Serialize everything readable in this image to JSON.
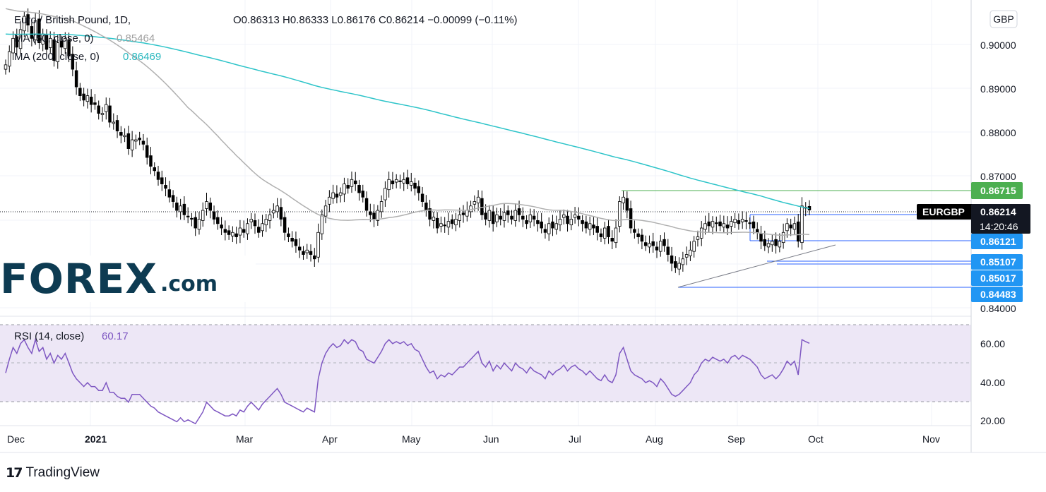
{
  "header": {
    "symbol": "Euro / British Pound, 1D,",
    "ohlc": "O0.86313  H0.86333  L0.86176  C0.86214  −0.00099 (−0.11%)",
    "ma50_label": "MA (50, close, 0)",
    "ma50_value": "0.85464",
    "ma200_label": "MA (200, close, 0)",
    "ma200_value": "0.86469"
  },
  "currency_badge": "GBP",
  "brand": {
    "logo_main": "FOREX",
    "logo_suffix": ".com",
    "platform": "TradingView",
    "platform_mark": "17"
  },
  "colors": {
    "bull": "#ffffff",
    "bear": "#000000",
    "ma200": "#2ec4c9",
    "ma50": "#b0b0b0",
    "resistance": "#4caf50",
    "support": "#2962ff",
    "rsi": "#7e57c2",
    "rsi_band": "#ede7f6",
    "price_tag": "#131722",
    "support_tag": "#2196f3",
    "resistance_tag": "#4caf50"
  },
  "price_tags": {
    "resistance": {
      "value": "0.86715"
    },
    "current": {
      "symbol": "EURGBP",
      "value": "0.86214",
      "countdown": "14:20:46"
    },
    "supports": [
      "0.86121",
      "0.85107",
      "0.85017",
      "0.84483"
    ]
  },
  "chart_data": [
    {
      "type": "candlestick",
      "title": "Euro / British Pound, 1D",
      "currency": "GBP",
      "y_ticks": [
        "0.90000",
        "0.89000",
        "0.88000",
        "0.87000",
        "0.84000"
      ],
      "ylim": [
        0.838,
        0.9097
      ],
      "x_ticks": [
        "Dec",
        "2021",
        "Mar",
        "Apr",
        "May",
        "Jun",
        "Jul",
        "Aug",
        "Sep",
        "Oct",
        "Nov"
      ],
      "candle_closes": [
        0.895,
        0.898,
        0.901,
        0.899,
        0.903,
        0.906,
        0.904,
        0.901,
        0.905,
        0.9,
        0.902,
        0.8985,
        0.901,
        0.896,
        0.9,
        0.899,
        0.901,
        0.897,
        0.894,
        0.89,
        0.888,
        0.887,
        0.888,
        0.886,
        0.886,
        0.884,
        0.884,
        0.886,
        0.882,
        0.882,
        0.88,
        0.879,
        0.879,
        0.876,
        0.878,
        0.878,
        0.878,
        0.877,
        0.874,
        0.872,
        0.871,
        0.869,
        0.868,
        0.867,
        0.865,
        0.864,
        0.862,
        0.863,
        0.861,
        0.8605,
        0.86,
        0.858,
        0.86,
        0.862,
        0.864,
        0.862,
        0.86,
        0.859,
        0.858,
        0.857,
        0.8565,
        0.857,
        0.856,
        0.858,
        0.857,
        0.859,
        0.86,
        0.8585,
        0.857,
        0.859,
        0.86,
        0.861,
        0.862,
        0.863,
        0.86,
        0.857,
        0.856,
        0.855,
        0.854,
        0.853,
        0.852,
        0.853,
        0.852,
        0.851,
        0.857,
        0.861,
        0.863,
        0.865,
        0.866,
        0.865,
        0.866,
        0.868,
        0.867,
        0.869,
        0.868,
        0.866,
        0.865,
        0.862,
        0.861,
        0.86,
        0.862,
        0.864,
        0.867,
        0.869,
        0.868,
        0.869,
        0.8685,
        0.869,
        0.868,
        0.8685,
        0.867,
        0.866,
        0.864,
        0.862,
        0.86,
        0.8605,
        0.858,
        0.859,
        0.8585,
        0.8595,
        0.859,
        0.86,
        0.861,
        0.861,
        0.862,
        0.863,
        0.864,
        0.865,
        0.861,
        0.86,
        0.862,
        0.859,
        0.861,
        0.86,
        0.8615,
        0.861,
        0.86,
        0.862,
        0.861,
        0.86,
        0.859,
        0.861,
        0.86,
        0.859,
        0.858,
        0.857,
        0.859,
        0.858,
        0.859,
        0.86,
        0.861,
        0.859,
        0.86,
        0.861,
        0.86,
        0.859,
        0.858,
        0.859,
        0.858,
        0.857,
        0.856,
        0.858,
        0.856,
        0.855,
        0.858,
        0.864,
        0.865,
        0.862,
        0.858,
        0.857,
        0.856,
        0.855,
        0.854,
        0.8545,
        0.854,
        0.853,
        0.855,
        0.854,
        0.852,
        0.85,
        0.849,
        0.85,
        0.851,
        0.852,
        0.853,
        0.855,
        0.856,
        0.858,
        0.859,
        0.8585,
        0.8595,
        0.859,
        0.8585,
        0.859,
        0.858,
        0.8595,
        0.86,
        0.859,
        0.86,
        0.8595,
        0.859,
        0.858,
        0.857,
        0.855,
        0.854,
        0.8545,
        0.855,
        0.854,
        0.855,
        0.857,
        0.859,
        0.858,
        0.859,
        0.855,
        0.863,
        0.8625,
        0.8621
      ],
      "series": [
        {
          "name": "MA (50, close, 0)",
          "last": 0.85464
        },
        {
          "name": "MA (200, close, 0)",
          "last": 0.86469
        }
      ],
      "levels": [
        0.86715,
        0.86121,
        0.85107,
        0.85017,
        0.84483
      ]
    },
    {
      "type": "line",
      "title": "RSI (14, close)",
      "value_label": "60.17",
      "y_ticks": [
        "60.00",
        "40.00",
        "20.00"
      ],
      "ylim": [
        18,
        74
      ],
      "band": [
        30,
        70
      ],
      "values": [
        45,
        52,
        58,
        55,
        60,
        62,
        58,
        55,
        62,
        56,
        58,
        52,
        55,
        50,
        54,
        52,
        55,
        50,
        45,
        42,
        40,
        38,
        40,
        38,
        38,
        36,
        36,
        40,
        35,
        35,
        33,
        32,
        32,
        30,
        34,
        34,
        34,
        32,
        30,
        28,
        27,
        25,
        24,
        23,
        22,
        21,
        20,
        22,
        20,
        21,
        20,
        19,
        22,
        25,
        30,
        28,
        26,
        25,
        24,
        23,
        23,
        24,
        23,
        26,
        25,
        28,
        30,
        28,
        26,
        29,
        31,
        33,
        35,
        37,
        34,
        30,
        29,
        28,
        27,
        26,
        25,
        27,
        26,
        25,
        42,
        50,
        55,
        58,
        60,
        58,
        59,
        62,
        60,
        62,
        61,
        57,
        56,
        52,
        51,
        50,
        53,
        56,
        60,
        62,
        60,
        61,
        60,
        61,
        59,
        60,
        57,
        56,
        52,
        48,
        45,
        46,
        42,
        44,
        43,
        45,
        44,
        46,
        48,
        48,
        50,
        52,
        54,
        56,
        50,
        48,
        51,
        46,
        49,
        47,
        50,
        48,
        46,
        50,
        48,
        47,
        45,
        48,
        46,
        45,
        44,
        42,
        46,
        44,
        46,
        47,
        49,
        46,
        48,
        49,
        47,
        46,
        44,
        46,
        44,
        42,
        41,
        44,
        41,
        40,
        44,
        55,
        58,
        52,
        46,
        44,
        43,
        42,
        40,
        41,
        40,
        38,
        42,
        40,
        37,
        34,
        33,
        34,
        36,
        38,
        40,
        44,
        46,
        50,
        52,
        51,
        53,
        52,
        51,
        52,
        50,
        53,
        54,
        52,
        54,
        53,
        52,
        50,
        48,
        44,
        42,
        43,
        44,
        42,
        44,
        47,
        51,
        49,
        51,
        44,
        62,
        61,
        60.17
      ]
    }
  ]
}
